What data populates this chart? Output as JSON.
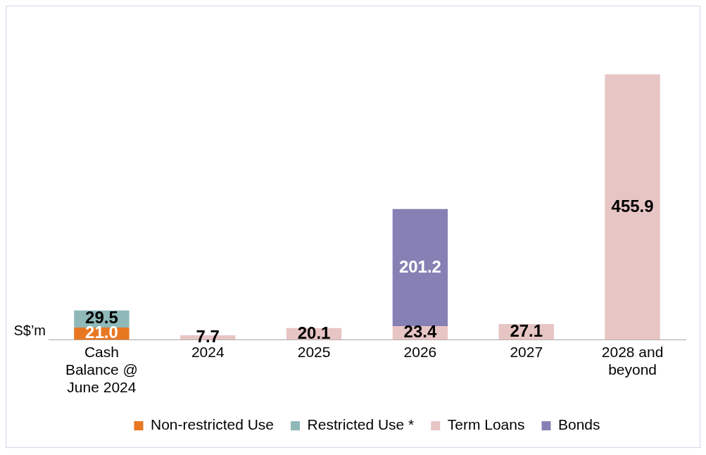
{
  "chart_data": {
    "type": "bar",
    "stacked": true,
    "ylabel": "S$’m",
    "categories": [
      "Cash Balance @ June 2024",
      "2024",
      "2025",
      "2026",
      "2027",
      "2028 and beyond"
    ],
    "series": [
      {
        "name": "Non-restricted Use",
        "color": "#e87722",
        "values": [
          21.0,
          null,
          null,
          null,
          null,
          null
        ],
        "value_labels": [
          "21.0",
          null,
          null,
          null,
          null,
          null
        ]
      },
      {
        "name": "Restricted Use *",
        "color": "#8fb9b9",
        "values": [
          29.5,
          null,
          null,
          null,
          null,
          null
        ],
        "value_labels": [
          "29.5",
          null,
          null,
          null,
          null,
          null
        ]
      },
      {
        "name": "Term Loans",
        "color": "#e8c5c5",
        "values": [
          null,
          7.7,
          20.1,
          23.4,
          27.1,
          455.9
        ],
        "value_labels": [
          null,
          "7.7",
          "20.1",
          "23.4",
          "27.1",
          "455.9"
        ]
      },
      {
        "name": "Bonds",
        "color": "#8681b4",
        "values": [
          null,
          null,
          null,
          201.2,
          null,
          null
        ],
        "value_labels": [
          null,
          null,
          null,
          "201.2",
          null,
          null
        ]
      }
    ],
    "grid": false,
    "legend": "bottom"
  }
}
